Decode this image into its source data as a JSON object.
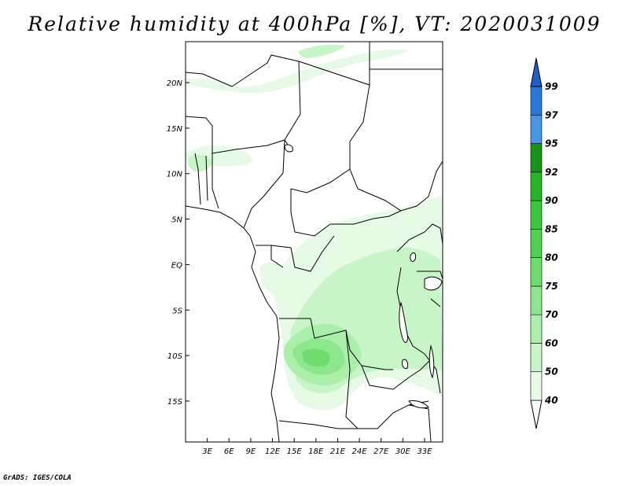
{
  "title": "Relative humidity at 400hPa [%], VT: 2020031009",
  "credit": "GrADS: IGES/COLA",
  "map": {
    "lon_range": [
      0,
      35.5
    ],
    "lat_range": [
      -19.5,
      24.5
    ],
    "lon_ticks": [
      {
        "value": 3,
        "label": "3E"
      },
      {
        "value": 6,
        "label": "6E"
      },
      {
        "value": 9,
        "label": "9E"
      },
      {
        "value": 12,
        "label": "12E"
      },
      {
        "value": 15,
        "label": "15E"
      },
      {
        "value": 18,
        "label": "18E"
      },
      {
        "value": 21,
        "label": "21E"
      },
      {
        "value": 24,
        "label": "24E"
      },
      {
        "value": 27,
        "label": "27E"
      },
      {
        "value": 30,
        "label": "30E"
      },
      {
        "value": 33,
        "label": "33E"
      }
    ],
    "lat_ticks": [
      {
        "value": 20,
        "label": "20N"
      },
      {
        "value": 15,
        "label": "15N"
      },
      {
        "value": 10,
        "label": "10N"
      },
      {
        "value": 5,
        "label": "5N"
      },
      {
        "value": 0,
        "label": "EQ"
      },
      {
        "value": -5,
        "label": "5S"
      },
      {
        "value": -10,
        "label": "10S"
      },
      {
        "value": -15,
        "label": "15S"
      }
    ]
  },
  "colorbar": {
    "levels": [
      "40",
      "50",
      "60",
      "70",
      "75",
      "80",
      "85",
      "90",
      "92",
      "95",
      "97",
      "99"
    ],
    "colors": [
      "#e6fae6",
      "#c8f5c8",
      "#aaf0aa",
      "#8ce68c",
      "#6edc6e",
      "#50d250",
      "#3cc83c",
      "#28b428",
      "#149614",
      "#4a96e6",
      "#2a78dc",
      "#1e5fc8"
    ],
    "below_color": "#ffffff",
    "above_color": "#1e5fc8"
  }
}
